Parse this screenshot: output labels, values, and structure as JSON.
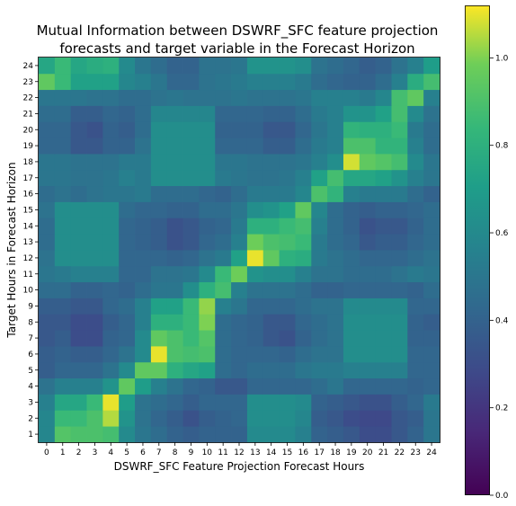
{
  "chart_data": {
    "type": "heatmap",
    "title_line1": "Mutual Information between DSWRF_SFC feature projection",
    "title_line2": "forecasts and target variable in the Forecast Horizon",
    "xlabel": "DSWRF_SFC Feature Projection Forecast Hours",
    "ylabel": "Target Hours in Forecast Horizon",
    "x_categories": [
      "0",
      "1",
      "2",
      "3",
      "4",
      "5",
      "6",
      "7",
      "8",
      "9",
      "10",
      "11",
      "12",
      "13",
      "14",
      "15",
      "16",
      "17",
      "18",
      "19",
      "20",
      "21",
      "22",
      "23",
      "24"
    ],
    "y_categories": [
      "1",
      "2",
      "3",
      "4",
      "5",
      "6",
      "7",
      "8",
      "9",
      "10",
      "11",
      "12",
      "13",
      "14",
      "15",
      "16",
      "17",
      "18",
      "19",
      "20",
      "21",
      "22",
      "23",
      "24"
    ],
    "colormap": "viridis",
    "color_range": [
      0,
      1.12
    ],
    "colorbar_ticks": [
      "0.0",
      "0.2",
      "0.4",
      "0.6",
      "0.8",
      "1.0"
    ],
    "colorbar_tick_values": [
      0,
      0.2,
      0.4,
      0.6,
      0.8,
      1.0
    ],
    "values": [
      [
        0.58,
        0.92,
        0.9,
        0.9,
        0.88,
        0.6,
        0.5,
        0.45,
        0.4,
        0.38,
        0.4,
        0.4,
        0.4,
        0.6,
        0.6,
        0.6,
        0.55,
        0.4,
        0.38,
        0.35,
        0.3,
        0.3,
        0.35,
        0.4,
        0.5
      ],
      [
        0.58,
        0.85,
        0.85,
        0.9,
        1.05,
        0.65,
        0.48,
        0.42,
        0.38,
        0.32,
        0.38,
        0.4,
        0.42,
        0.62,
        0.62,
        0.62,
        0.58,
        0.38,
        0.35,
        0.3,
        0.28,
        0.28,
        0.35,
        0.38,
        0.5
      ],
      [
        0.55,
        0.75,
        0.75,
        0.85,
        1.1,
        0.7,
        0.48,
        0.45,
        0.42,
        0.38,
        0.42,
        0.42,
        0.42,
        0.62,
        0.62,
        0.62,
        0.6,
        0.4,
        0.38,
        0.35,
        0.32,
        0.32,
        0.38,
        0.42,
        0.52
      ],
      [
        0.48,
        0.55,
        0.55,
        0.55,
        0.65,
        0.95,
        0.7,
        0.55,
        0.48,
        0.42,
        0.4,
        0.35,
        0.35,
        0.42,
        0.42,
        0.42,
        0.42,
        0.45,
        0.5,
        0.42,
        0.42,
        0.42,
        0.42,
        0.4,
        0.42
      ],
      [
        0.38,
        0.42,
        0.42,
        0.42,
        0.48,
        0.6,
        0.95,
        0.95,
        0.8,
        0.75,
        0.72,
        0.45,
        0.42,
        0.45,
        0.45,
        0.45,
        0.5,
        0.52,
        0.52,
        0.55,
        0.55,
        0.55,
        0.55,
        0.42,
        0.42
      ],
      [
        0.38,
        0.4,
        0.38,
        0.38,
        0.42,
        0.48,
        0.6,
        1.1,
        0.9,
        0.88,
        0.9,
        0.45,
        0.42,
        0.42,
        0.42,
        0.4,
        0.45,
        0.48,
        0.48,
        0.62,
        0.62,
        0.62,
        0.62,
        0.42,
        0.42
      ],
      [
        0.35,
        0.38,
        0.3,
        0.3,
        0.4,
        0.42,
        0.6,
        0.95,
        0.9,
        0.85,
        0.92,
        0.45,
        0.42,
        0.4,
        0.35,
        0.32,
        0.4,
        0.45,
        0.48,
        0.62,
        0.62,
        0.62,
        0.62,
        0.4,
        0.4
      ],
      [
        0.35,
        0.35,
        0.3,
        0.3,
        0.38,
        0.42,
        0.55,
        0.8,
        0.8,
        0.85,
        1.0,
        0.45,
        0.42,
        0.4,
        0.35,
        0.35,
        0.42,
        0.45,
        0.48,
        0.62,
        0.62,
        0.62,
        0.62,
        0.4,
        0.38
      ],
      [
        0.38,
        0.38,
        0.35,
        0.35,
        0.42,
        0.45,
        0.55,
        0.72,
        0.72,
        0.85,
        1.02,
        0.55,
        0.5,
        0.42,
        0.42,
        0.42,
        0.45,
        0.48,
        0.48,
        0.6,
        0.6,
        0.6,
        0.6,
        0.42,
        0.42
      ],
      [
        0.45,
        0.45,
        0.4,
        0.4,
        0.42,
        0.4,
        0.45,
        0.5,
        0.5,
        0.62,
        0.8,
        0.88,
        0.55,
        0.48,
        0.48,
        0.48,
        0.45,
        0.4,
        0.4,
        0.42,
        0.42,
        0.42,
        0.42,
        0.4,
        0.45
      ],
      [
        0.5,
        0.52,
        0.55,
        0.55,
        0.55,
        0.42,
        0.42,
        0.48,
        0.48,
        0.5,
        0.6,
        0.85,
        0.98,
        0.65,
        0.62,
        0.62,
        0.55,
        0.48,
        0.48,
        0.45,
        0.45,
        0.45,
        0.48,
        0.52,
        0.5
      ],
      [
        0.48,
        0.62,
        0.62,
        0.62,
        0.62,
        0.42,
        0.42,
        0.42,
        0.4,
        0.42,
        0.48,
        0.52,
        0.72,
        1.1,
        0.95,
        0.8,
        0.78,
        0.52,
        0.48,
        0.45,
        0.42,
        0.42,
        0.42,
        0.45,
        0.48
      ],
      [
        0.45,
        0.62,
        0.62,
        0.62,
        0.62,
        0.42,
        0.4,
        0.38,
        0.32,
        0.35,
        0.42,
        0.45,
        0.55,
        0.98,
        0.9,
        0.88,
        0.85,
        0.52,
        0.45,
        0.42,
        0.35,
        0.38,
        0.38,
        0.42,
        0.45
      ],
      [
        0.45,
        0.62,
        0.62,
        0.62,
        0.62,
        0.42,
        0.4,
        0.38,
        0.32,
        0.35,
        0.4,
        0.42,
        0.52,
        0.8,
        0.8,
        0.85,
        0.88,
        0.55,
        0.45,
        0.4,
        0.32,
        0.35,
        0.35,
        0.4,
        0.45
      ],
      [
        0.48,
        0.62,
        0.62,
        0.62,
        0.62,
        0.45,
        0.42,
        0.42,
        0.4,
        0.4,
        0.45,
        0.45,
        0.5,
        0.62,
        0.65,
        0.72,
        0.95,
        0.58,
        0.45,
        0.4,
        0.38,
        0.4,
        0.4,
        0.42,
        0.45
      ],
      [
        0.45,
        0.48,
        0.45,
        0.48,
        0.5,
        0.5,
        0.52,
        0.45,
        0.45,
        0.45,
        0.42,
        0.4,
        0.45,
        0.52,
        0.52,
        0.52,
        0.58,
        0.9,
        0.82,
        0.55,
        0.52,
        0.52,
        0.52,
        0.45,
        0.4
      ],
      [
        0.5,
        0.5,
        0.48,
        0.48,
        0.5,
        0.55,
        0.52,
        0.62,
        0.62,
        0.62,
        0.62,
        0.52,
        0.5,
        0.48,
        0.48,
        0.5,
        0.55,
        0.72,
        0.88,
        0.75,
        0.75,
        0.72,
        0.65,
        0.55,
        0.5
      ],
      [
        0.5,
        0.5,
        0.48,
        0.48,
        0.48,
        0.52,
        0.52,
        0.62,
        0.62,
        0.62,
        0.62,
        0.5,
        0.5,
        0.48,
        0.48,
        0.48,
        0.5,
        0.55,
        0.62,
        1.08,
        0.95,
        0.92,
        0.88,
        0.6,
        0.5
      ],
      [
        0.42,
        0.42,
        0.35,
        0.35,
        0.4,
        0.4,
        0.48,
        0.62,
        0.62,
        0.62,
        0.62,
        0.42,
        0.42,
        0.42,
        0.38,
        0.38,
        0.45,
        0.52,
        0.55,
        0.9,
        0.9,
        0.82,
        0.82,
        0.55,
        0.45
      ],
      [
        0.42,
        0.42,
        0.35,
        0.32,
        0.4,
        0.38,
        0.45,
        0.62,
        0.62,
        0.62,
        0.62,
        0.4,
        0.4,
        0.4,
        0.35,
        0.35,
        0.42,
        0.5,
        0.55,
        0.82,
        0.8,
        0.8,
        0.85,
        0.52,
        0.45
      ],
      [
        0.45,
        0.45,
        0.38,
        0.38,
        0.42,
        0.4,
        0.45,
        0.58,
        0.58,
        0.58,
        0.58,
        0.42,
        0.42,
        0.42,
        0.4,
        0.4,
        0.45,
        0.52,
        0.55,
        0.65,
        0.65,
        0.72,
        0.88,
        0.6,
        0.48
      ],
      [
        0.5,
        0.5,
        0.5,
        0.48,
        0.48,
        0.45,
        0.45,
        0.48,
        0.5,
        0.48,
        0.48,
        0.48,
        0.5,
        0.48,
        0.48,
        0.48,
        0.5,
        0.55,
        0.55,
        0.55,
        0.52,
        0.58,
        0.88,
        0.95,
        0.55
      ],
      [
        0.95,
        0.85,
        0.72,
        0.72,
        0.72,
        0.58,
        0.55,
        0.5,
        0.42,
        0.42,
        0.48,
        0.5,
        0.52,
        0.55,
        0.55,
        0.55,
        0.52,
        0.45,
        0.42,
        0.4,
        0.4,
        0.45,
        0.55,
        0.78,
        0.88
      ],
      [
        0.75,
        0.85,
        0.75,
        0.78,
        0.8,
        0.6,
        0.5,
        0.45,
        0.4,
        0.4,
        0.48,
        0.48,
        0.5,
        0.65,
        0.65,
        0.65,
        0.62,
        0.48,
        0.45,
        0.42,
        0.38,
        0.4,
        0.48,
        0.55,
        0.7
      ]
    ]
  }
}
